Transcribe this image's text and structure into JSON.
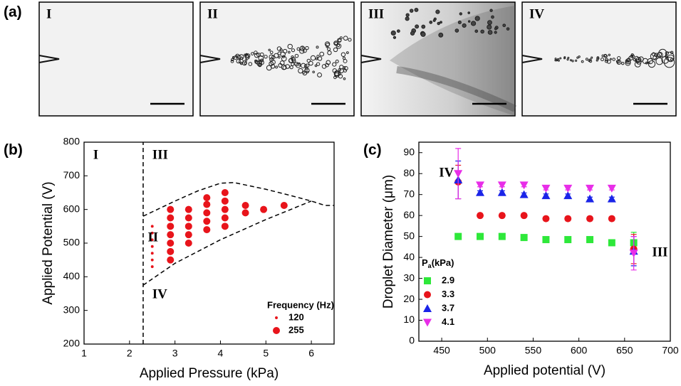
{
  "panel_labels": [
    "(a)",
    "(b)",
    "(c)"
  ],
  "images": [
    "I",
    "II",
    "III",
    "IV"
  ],
  "chart_data": [
    {
      "type": "scatter",
      "x_label": "Applied Pressure (kPa)",
      "y_label": "Applied Potential (V)",
      "xlim": [
        1,
        6.5
      ],
      "xticks": [
        1,
        2,
        3,
        4,
        5,
        6
      ],
      "ylim": [
        200,
        800
      ],
      "yticks": [
        200,
        300,
        400,
        500,
        600,
        700,
        800
      ],
      "annotations": [
        "I",
        "III",
        "II",
        "IV"
      ],
      "legend_title": "Frequency (Hz)",
      "size_legend": [
        120,
        255
      ],
      "series": [
        {
          "color": "#e8141b",
          "x": [
            2.5,
            2.5,
            2.5,
            2.5,
            2.5,
            2.5,
            2.5,
            2.9,
            2.9,
            2.9,
            2.9,
            2.9,
            2.9,
            2.9,
            3.3,
            3.3,
            3.3,
            3.3,
            3.3,
            3.7,
            3.7,
            3.7,
            3.7,
            3.7,
            4.1,
            4.1,
            4.1,
            4.1,
            4.1,
            4.55,
            4.55,
            4.95,
            5.4
          ],
          "values": [
            430,
            450,
            470,
            490,
            510,
            530,
            550,
            450,
            475,
            500,
            525,
            550,
            575,
            600,
            500,
            525,
            550,
            575,
            600,
            540,
            565,
            590,
            615,
            635,
            550,
            575,
            600,
            625,
            650,
            590,
            612,
            600,
            612
          ],
          "size": [
            120,
            120,
            120,
            120,
            120,
            120,
            120,
            255,
            255,
            255,
            255,
            255,
            255,
            255,
            255,
            255,
            255,
            255,
            255,
            255,
            255,
            255,
            255,
            255,
            255,
            255,
            255,
            255,
            255,
            255,
            255,
            255,
            255
          ]
        }
      ],
      "boundaries": [
        {
          "x": [
            2.3,
            2.3
          ],
          "values": [
            200,
            800
          ]
        },
        {
          "x": [
            2.3,
            3,
            3.5,
            4,
            4.3,
            5,
            5.5,
            6,
            6.3,
            6.5
          ],
          "values": [
            580,
            625,
            655,
            678,
            680,
            660,
            643,
            625,
            612,
            612
          ]
        },
        {
          "x": [
            2.3,
            3,
            4,
            5,
            6
          ],
          "values": [
            375,
            440,
            510,
            570,
            625
          ]
        }
      ]
    },
    {
      "type": "scatter",
      "x_label": "Applied potential (V)",
      "y_label": "Droplet Diameter (μm)",
      "xlim": [
        425,
        700
      ],
      "xticks": [
        450,
        500,
        550,
        600,
        650,
        700
      ],
      "ylim": [
        0,
        95
      ],
      "yticks": [
        0,
        10,
        20,
        30,
        40,
        50,
        60,
        70,
        80,
        90
      ],
      "annotations": [
        "IV",
        "III"
      ],
      "legend_title": {
        "main": "P",
        "sub": "a",
        "rest": "(kPa)"
      },
      "x": [
        468,
        492,
        516,
        540,
        564,
        588,
        612,
        636,
        660
      ],
      "series": [
        {
          "name": "2.9",
          "color": "#2ee83a",
          "marker": "square",
          "values": [
            50,
            50,
            50,
            49.5,
            48.5,
            48.5,
            48.5,
            47,
            47
          ],
          "errors": [
            0.8,
            0.8,
            0.8,
            0.8,
            0.8,
            0.8,
            0.8,
            0.8,
            5
          ]
        },
        {
          "name": "3.3",
          "color": "#e8141b",
          "marker": "circle",
          "values": [
            76,
            60,
            60,
            60,
            58.5,
            58.5,
            58.5,
            58.5,
            44
          ],
          "errors": [
            8,
            0.8,
            0.8,
            0.8,
            0.8,
            0.8,
            0.8,
            0.8,
            7
          ]
        },
        {
          "name": "3.7",
          "color": "#1a24e8",
          "marker": "triangle",
          "values": [
            77,
            71,
            71,
            70,
            69.5,
            69.5,
            68,
            68,
            43
          ],
          "errors": [
            9,
            0.8,
            0.8,
            0.8,
            0.8,
            0.8,
            0.8,
            0.8,
            7
          ]
        },
        {
          "name": "4.1",
          "color": "#e82ee8",
          "marker": "down-triangle",
          "values": [
            80,
            74.5,
            74.5,
            74.5,
            73,
            73,
            73,
            73,
            42
          ],
          "errors": [
            12,
            0.8,
            0.8,
            0.8,
            0.8,
            0.8,
            0.8,
            0.8,
            8
          ]
        }
      ]
    }
  ]
}
